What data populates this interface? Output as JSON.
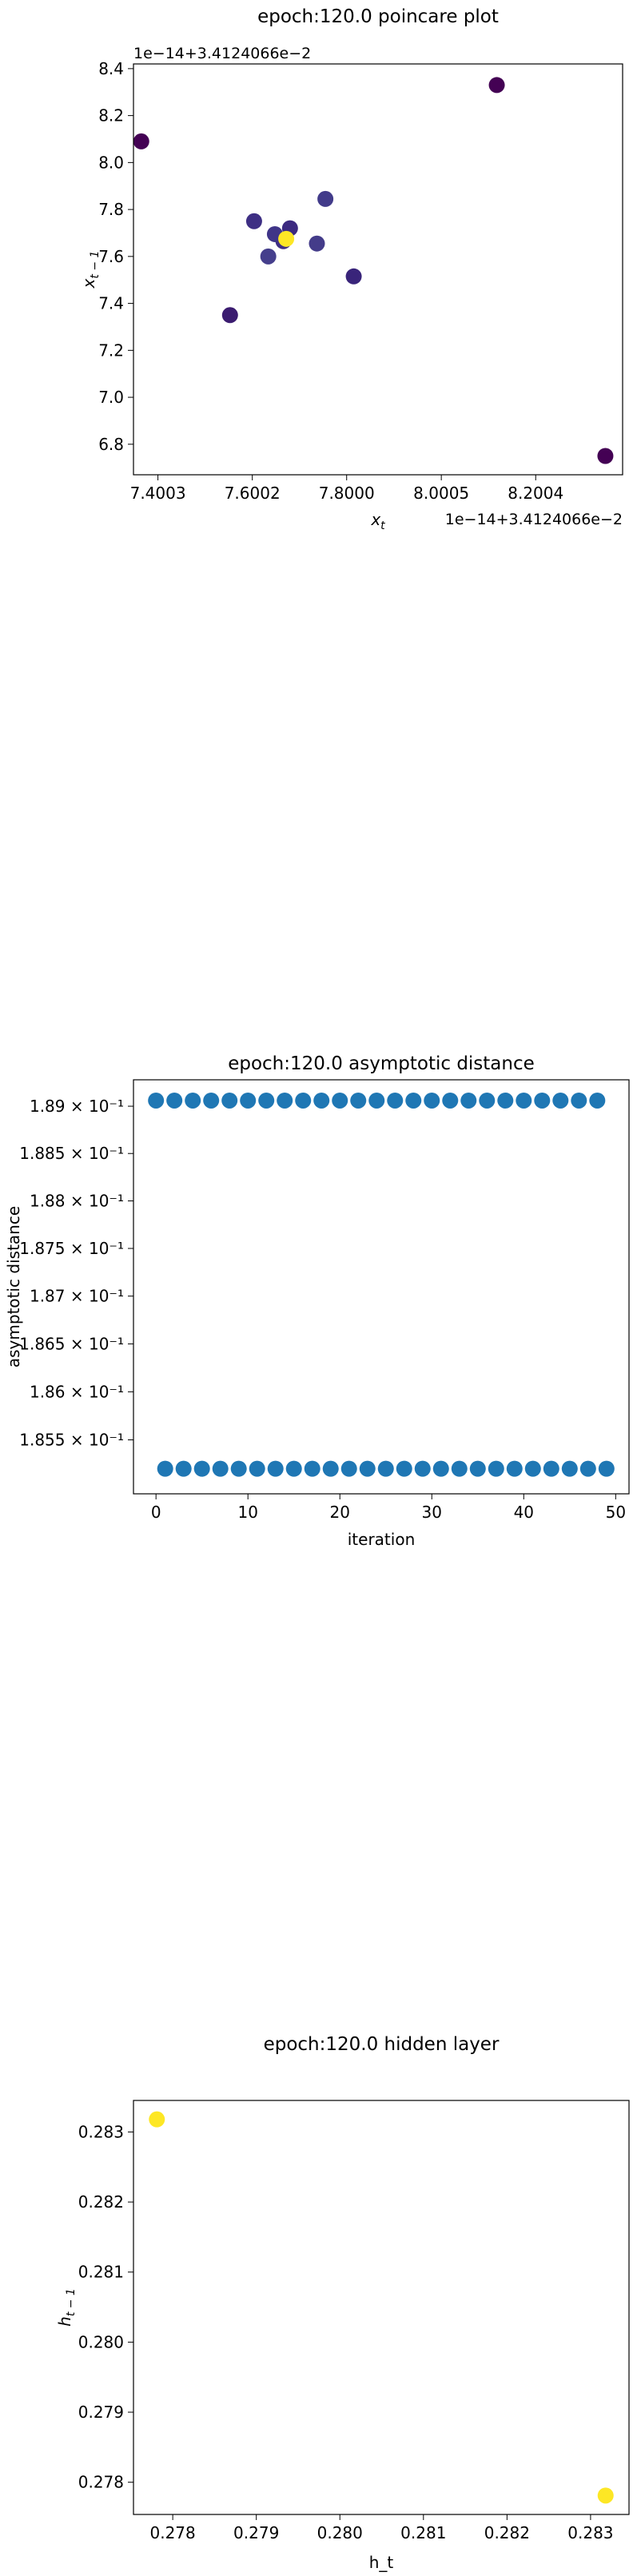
{
  "chart_data": [
    {
      "type": "scatter",
      "title": "epoch:120.0 poincare plot",
      "xlabel": "x_t",
      "ylabel": "x_{t-1}",
      "x_offset_label": "1e−14+3.4124066e−2",
      "y_offset_label": "1e−14+3.4124066e−2",
      "x_ticks": [
        "7.4003",
        "7.6002",
        "7.8000",
        "8.0005",
        "8.2004"
      ],
      "x_tick_values": [
        7.4003,
        7.6002,
        7.8,
        8.0005,
        8.2004
      ],
      "y_ticks": [
        "6.8",
        "7.0",
        "7.2",
        "7.4",
        "7.6",
        "7.8",
        "8.0",
        "8.2",
        "8.4"
      ],
      "y_tick_values": [
        6.8,
        7.0,
        7.2,
        7.4,
        7.6,
        7.8,
        8.0,
        8.2,
        8.4
      ],
      "xlim": [
        7.3485,
        8.3845
      ],
      "ylim": [
        6.67,
        8.42
      ],
      "colormap": "viridis",
      "points": [
        {
          "x": 7.365,
          "y": 8.09,
          "color": "#440154"
        },
        {
          "x": 8.118,
          "y": 8.33,
          "color": "#440154"
        },
        {
          "x": 8.348,
          "y": 6.75,
          "color": "#440154"
        },
        {
          "x": 7.553,
          "y": 7.35,
          "color": "#3b1c70"
        },
        {
          "x": 7.815,
          "y": 7.515,
          "color": "#39247a"
        },
        {
          "x": 7.604,
          "y": 7.75,
          "color": "#3e2f84"
        },
        {
          "x": 7.755,
          "y": 7.845,
          "color": "#423b8a"
        },
        {
          "x": 7.634,
          "y": 7.6,
          "color": "#453f8c"
        },
        {
          "x": 7.737,
          "y": 7.655,
          "color": "#443c8a"
        },
        {
          "x": 7.666,
          "y": 7.665,
          "color": "#3f2f84"
        },
        {
          "x": 7.68,
          "y": 7.72,
          "color": "#3c2a80"
        },
        {
          "x": 7.648,
          "y": 7.695,
          "color": "#3f3588"
        },
        {
          "x": 7.672,
          "y": 7.675,
          "color": "#fde725"
        }
      ]
    },
    {
      "type": "scatter",
      "title": "epoch:120.0 asymptotic distance",
      "xlabel": "iteration",
      "ylabel": "asymptotic distance",
      "yscale": "log",
      "x_ticks": [
        "0",
        "10",
        "20",
        "30",
        "40",
        "50"
      ],
      "x_tick_values": [
        0,
        10,
        20,
        30,
        40,
        50
      ],
      "y_ticks": [
        "1.855 × 10⁻¹",
        "1.86 × 10⁻¹",
        "1.865 × 10⁻¹",
        "1.87 × 10⁻¹",
        "1.875 × 10⁻¹",
        "1.88 × 10⁻¹",
        "1.885 × 10⁻¹",
        "1.89 × 10⁻¹"
      ],
      "y_tick_values": [
        0.1855,
        0.186,
        0.1865,
        0.187,
        0.1875,
        0.188,
        0.1885,
        0.189
      ],
      "xlim": [
        -2.45,
        51.45
      ],
      "ylim": [
        0.18494,
        0.18928
      ],
      "point_color": "#1f77b4",
      "x": [
        0,
        1,
        2,
        3,
        4,
        5,
        6,
        7,
        8,
        9,
        10,
        11,
        12,
        13,
        14,
        15,
        16,
        17,
        18,
        19,
        20,
        21,
        22,
        23,
        24,
        25,
        26,
        27,
        28,
        29,
        30,
        31,
        32,
        33,
        34,
        35,
        36,
        37,
        38,
        39,
        40,
        41,
        42,
        43,
        44,
        45,
        46,
        47,
        48,
        49
      ],
      "y": [
        0.18906,
        0.1852,
        0.18906,
        0.1852,
        0.18906,
        0.1852,
        0.18906,
        0.1852,
        0.18906,
        0.1852,
        0.18906,
        0.1852,
        0.18906,
        0.1852,
        0.18906,
        0.1852,
        0.18906,
        0.1852,
        0.18906,
        0.1852,
        0.18906,
        0.1852,
        0.18906,
        0.1852,
        0.18906,
        0.1852,
        0.18906,
        0.1852,
        0.18906,
        0.1852,
        0.18906,
        0.1852,
        0.18906,
        0.1852,
        0.18906,
        0.1852,
        0.18906,
        0.1852,
        0.18906,
        0.1852,
        0.18906,
        0.1852,
        0.18906,
        0.1852,
        0.18906,
        0.1852,
        0.18906,
        0.1852,
        0.18906,
        0.1852
      ]
    },
    {
      "type": "scatter",
      "title": "epoch:120.0 hidden layer",
      "xlabel": "h_t",
      "ylabel": "h_{t-1}",
      "x_ticks": [
        "0.278",
        "0.279",
        "0.280",
        "0.281",
        "0.282",
        "0.283"
      ],
      "x_tick_values": [
        0.278,
        0.279,
        0.28,
        0.281,
        0.282,
        0.283
      ],
      "y_ticks": [
        "0.278",
        "0.279",
        "0.280",
        "0.281",
        "0.282",
        "0.283"
      ],
      "y_tick_values": [
        0.278,
        0.279,
        0.28,
        0.281,
        0.282,
        0.283
      ],
      "xlim": [
        0.27753,
        0.28346
      ],
      "ylim": [
        0.27754,
        0.28345
      ],
      "points": [
        {
          "x": 0.27781,
          "y": 0.28318,
          "color": "#fde725"
        },
        {
          "x": 0.28318,
          "y": 0.27781,
          "color": "#fde725"
        }
      ]
    }
  ]
}
